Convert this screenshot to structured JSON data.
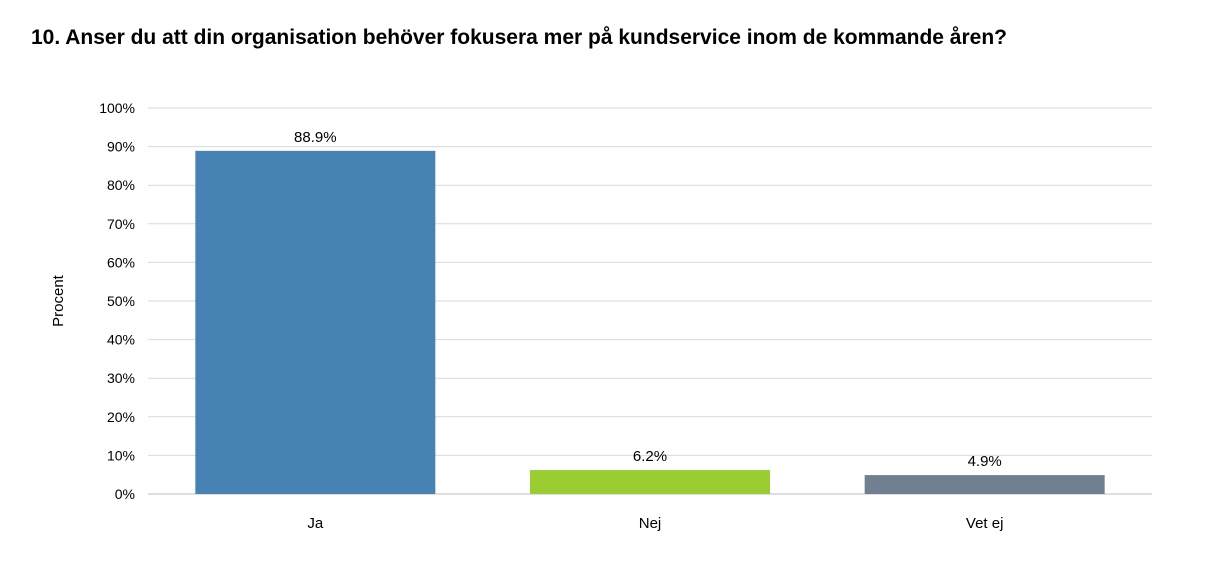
{
  "chart_data": {
    "type": "bar",
    "title": "10. Anser du att din organisation behöver fokusera mer på kundservice inom de kommande åren?",
    "xlabel": "",
    "ylabel": "Procent",
    "categories": [
      "Ja",
      "Nej",
      "Vet ej"
    ],
    "values": [
      88.9,
      6.2,
      4.9
    ],
    "data_labels": [
      "88.9%",
      "6.2%",
      "4.9%"
    ],
    "colors": [
      "#4682b4",
      "#9acd32",
      "#708090"
    ],
    "ylim": [
      0,
      100
    ],
    "yticks": [
      "0%",
      "10%",
      "20%",
      "30%",
      "40%",
      "50%",
      "60%",
      "70%",
      "80%",
      "90%",
      "100%"
    ],
    "grid": true,
    "legend": "none"
  }
}
